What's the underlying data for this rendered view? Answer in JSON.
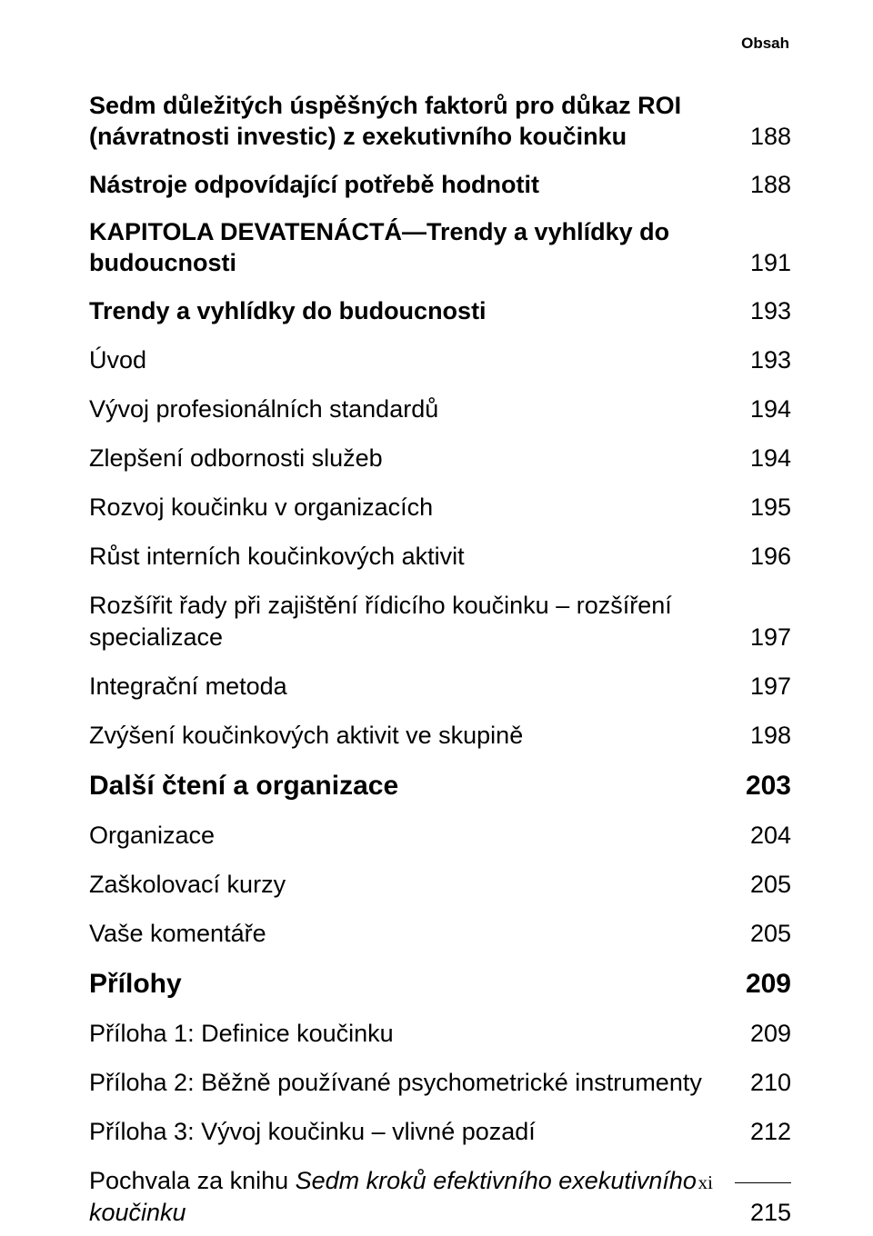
{
  "header": "Obsah",
  "page_number": "xi",
  "typography": {
    "font_family": "Myriad Pro Condensed / sans-serif condensed",
    "header_fontsize_pt": 13,
    "entry_fontsize_pt": 20,
    "bold_fontsize_pt": 22,
    "footer_fontsize_pt": 16,
    "footer_family": "serif"
  },
  "colors": {
    "text": "#000000",
    "background": "#ffffff",
    "footer_line": "#000000"
  },
  "entries": [
    {
      "level": "semi",
      "title": "Sedm důležitých úspěšných faktorů pro důkaz ROI (návratnosti investic) z exekutivního koučinku",
      "page": "188"
    },
    {
      "level": "semi",
      "title": "Nástroje odpovídající potřebě hodnotit",
      "page": "188"
    },
    {
      "level": "chapter",
      "title": "KAPITOLA DEVATENÁCTÁ—Trendy a vyhlídky do budoucnosti",
      "page": "191"
    },
    {
      "level": "semi",
      "title": "Trendy a vyhlídky do budoucnosti",
      "page": "193"
    },
    {
      "level": "reg",
      "title": "Úvod",
      "page": "193"
    },
    {
      "level": "reg",
      "title": "Vývoj profesionálních standardů",
      "page": "194"
    },
    {
      "level": "reg",
      "title": "Zlepšení odbornosti služeb",
      "page": "194"
    },
    {
      "level": "reg",
      "title": "Rozvoj koučinku v organizacích",
      "page": "195"
    },
    {
      "level": "reg",
      "title": "Růst interních koučinkových aktivit",
      "page": "196"
    },
    {
      "level": "reg",
      "title": "Rozšířit řady při zajištění řídicího koučinku – rozšíření specializace",
      "page": "197"
    },
    {
      "level": "reg",
      "title": "Integrační metoda",
      "page": "197"
    },
    {
      "level": "reg",
      "title": "Zvýšení koučinkových aktivit ve skupině",
      "page": "198"
    },
    {
      "level": "bold",
      "title": "Další čtení a organizace",
      "page": "203"
    },
    {
      "level": "reg",
      "title": "Organizace",
      "page": "204"
    },
    {
      "level": "reg",
      "title": "Zaškolovací kurzy",
      "page": "205"
    },
    {
      "level": "reg",
      "title": "Vaše komentáře",
      "page": "205"
    },
    {
      "level": "bold",
      "title": "Přílohy",
      "page": "209"
    },
    {
      "level": "reg",
      "title": "Příloha 1: Definice koučinku",
      "page": "209"
    },
    {
      "level": "reg",
      "title": "Příloha 2: Běžně používané psychometrické instrumenty",
      "page": "210"
    },
    {
      "level": "reg",
      "title": "Příloha 3: Vývoj koučinku – vlivné pozadí",
      "page": "212"
    },
    {
      "level": "reg",
      "title_prefix": "Pochvala za knihu ",
      "title_italic": "Sedm kroků efektivního exekutivního koučinku",
      "page": "215"
    }
  ]
}
